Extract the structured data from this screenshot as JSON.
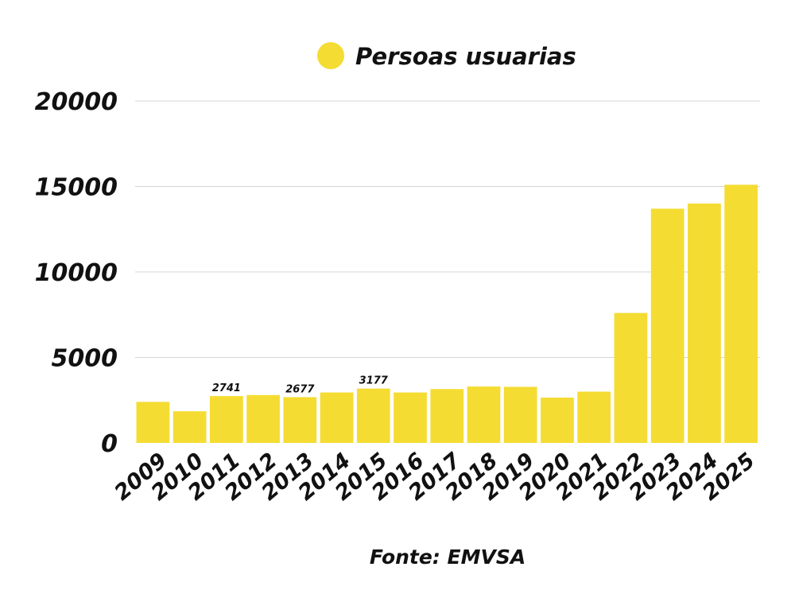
{
  "chart_data": {
    "type": "bar",
    "categories": [
      "2009",
      "2010",
      "2011",
      "2012",
      "2013",
      "2014",
      "2015",
      "2016",
      "2017",
      "2018",
      "2019",
      "2020",
      "2021",
      "2022",
      "2023",
      "2024",
      "2025"
    ],
    "series": [
      {
        "name": "Persoas usuarias",
        "color": "#f5dc32",
        "values": [
          2400,
          1850,
          2741,
          2800,
          2677,
          2950,
          3177,
          2950,
          3150,
          3300,
          3280,
          2650,
          3000,
          7600,
          13700,
          14000,
          15100
        ]
      }
    ],
    "data_labels": [
      {
        "category": "2011",
        "text": "2741"
      },
      {
        "category": "2013",
        "text": "2677"
      },
      {
        "category": "2015",
        "text": "3177"
      }
    ],
    "y_ticks": [
      "0",
      "5000",
      "10000",
      "15000",
      "20000"
    ],
    "ylim": [
      0,
      20000
    ],
    "grid": true,
    "legend_position": "top",
    "source": "Fonte: EMVSA"
  }
}
